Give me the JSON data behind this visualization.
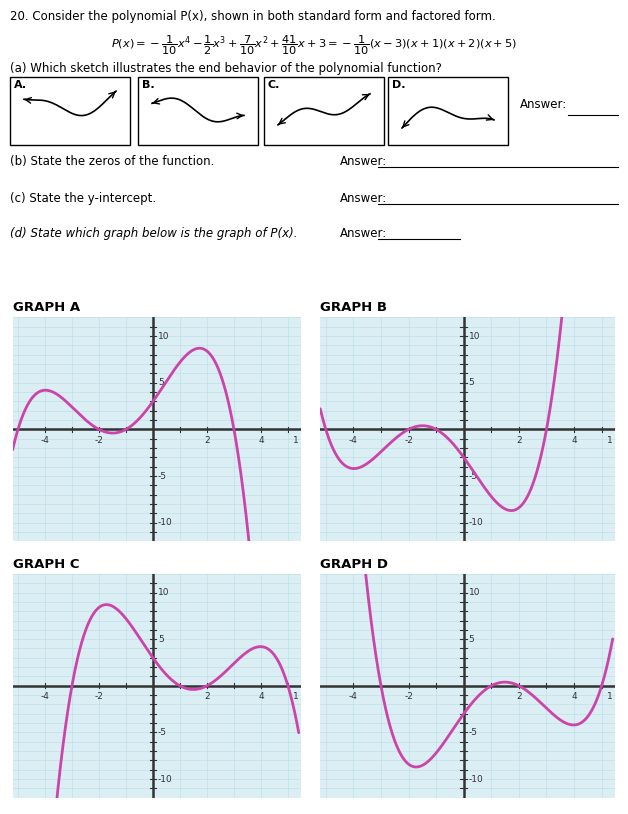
{
  "title": "20. Consider the polynomial P(x), shown in both standard form and factored form.",
  "eq": "$P(x)=-\\dfrac{1}{10}x^4-\\dfrac{1}{2}x^3+\\dfrac{7}{10}x^2+\\dfrac{41}{10}x+3=-\\dfrac{1}{10}(x-3)(x+1)(x+2)(x+5)$",
  "part_a": "(a) Which sketch illustrates the end behavior of the polynomial function?",
  "part_b": "(b) State the zeros of the function.",
  "part_c": "(c) State the y-intercept.",
  "part_d": "(d) State which graph below is the graph of P(x).",
  "answer": "Answer:",
  "graph_labels": [
    "GRAPH A",
    "GRAPH B",
    "GRAPH C",
    "GRAPH D"
  ],
  "curve_color": "#cc44aa",
  "grid_color": "#b8dde8",
  "bg_color": "#daeef4",
  "axis_color": "#555555",
  "text_color": "#222222"
}
